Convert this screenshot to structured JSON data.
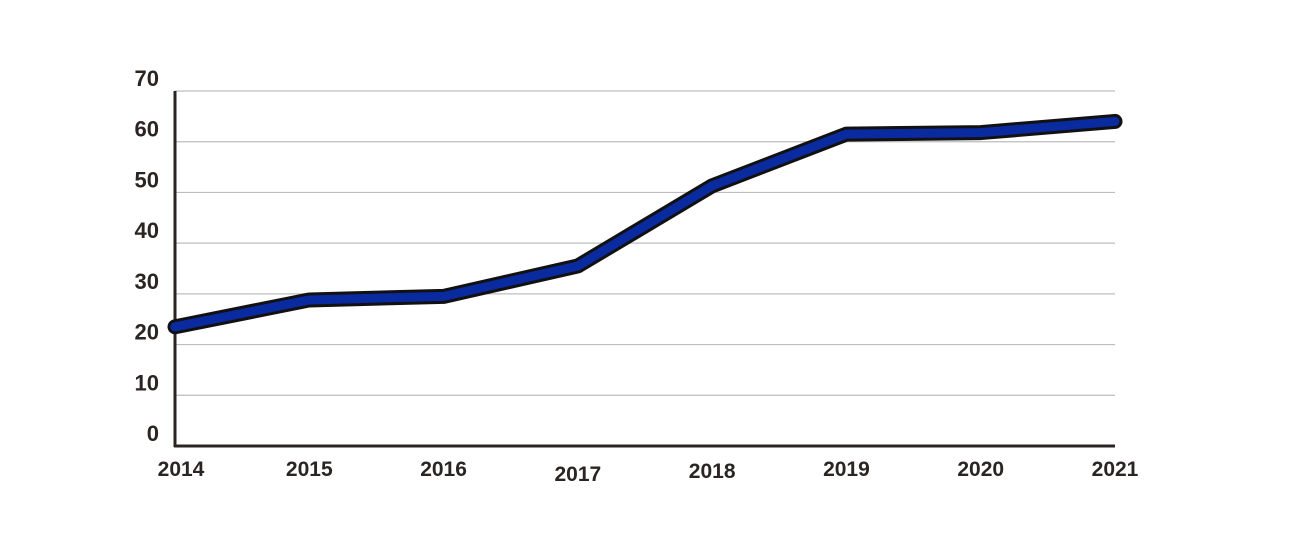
{
  "chart_data": {
    "type": "line",
    "title": "",
    "xlabel": "",
    "ylabel": "",
    "x": [
      "2014",
      "2015",
      "2016",
      "2017",
      "2018",
      "2019",
      "2020",
      "2021"
    ],
    "series": [
      {
        "values": [
          23.5,
          28.8,
          29.5,
          35.5,
          51.3,
          61.5,
          61.8,
          64.0
        ]
      }
    ],
    "ylim": [
      0,
      70
    ],
    "yticks": [
      0,
      10,
      20,
      30,
      40,
      50,
      60,
      70
    ],
    "grid": true,
    "legend": "none",
    "colors": {
      "line": "#0a2aa0",
      "outline": "#111111",
      "grid": "#bdbdbd",
      "axis": "#2a2522",
      "text": "#2a2522"
    }
  }
}
